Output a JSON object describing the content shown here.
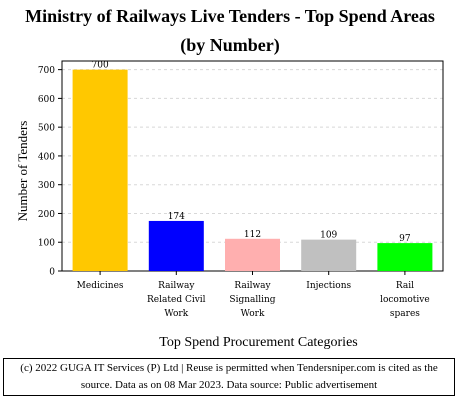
{
  "chart_data": {
    "type": "bar",
    "title": "Ministry of Railways  Live Tenders - Top Spend Areas",
    "subtitle": "(by Number)",
    "xlabel": "Top Spend Procurement Categories",
    "ylabel": "Number of Tenders",
    "categories": [
      [
        "Medicines"
      ],
      [
        "Railway",
        "Related Civil",
        "Work"
      ],
      [
        "Railway",
        "Signalling",
        "Work"
      ],
      [
        "Injections"
      ],
      [
        "Rail",
        "locomotive",
        "spares"
      ]
    ],
    "values": [
      700,
      174,
      112,
      109,
      97
    ],
    "colors": [
      "#ffc800",
      "#0000ff",
      "#ffafaf",
      "#c0c0c0",
      "#00ff00"
    ],
    "ylim": [
      0,
      730
    ],
    "yticks": [
      0,
      100,
      200,
      300,
      400,
      500,
      600,
      700
    ],
    "grid": true,
    "legend": "none"
  },
  "footer": {
    "line1": "(c) 2022 GUGA IT Services (P) Ltd | Reuse is permitted when Tendersniper.com is cited as the",
    "line2": "source. Data as on 08 Mar 2023. Data source: Public advertisement"
  }
}
